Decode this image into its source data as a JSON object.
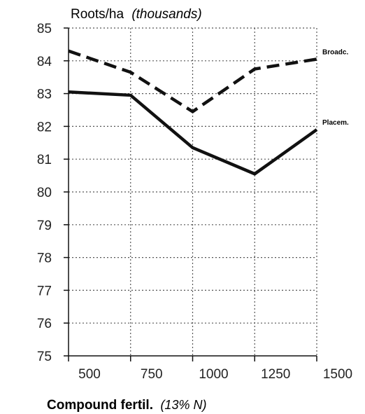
{
  "chart_data": {
    "type": "line",
    "title": "Roots/ha",
    "title_unit": "(thousands)",
    "xlabel": "Compound fertil.",
    "xlabel_unit": "(13% N)",
    "x": [
      500,
      750,
      1000,
      1250,
      1500
    ],
    "xlim": [
      500,
      1500
    ],
    "ylim": [
      75,
      85
    ],
    "yticks": [
      75,
      76,
      77,
      78,
      79,
      80,
      81,
      82,
      83,
      84,
      85
    ],
    "grid": true,
    "series": [
      {
        "name": "Broadc.",
        "style": "dashed",
        "values": [
          84.3,
          83.65,
          82.45,
          83.75,
          84.05
        ]
      },
      {
        "name": "Placem.",
        "style": "solid",
        "values": [
          83.05,
          82.95,
          81.35,
          80.55,
          81.9
        ]
      }
    ],
    "colors": {
      "line": "#111111",
      "grid": "#555555"
    }
  }
}
